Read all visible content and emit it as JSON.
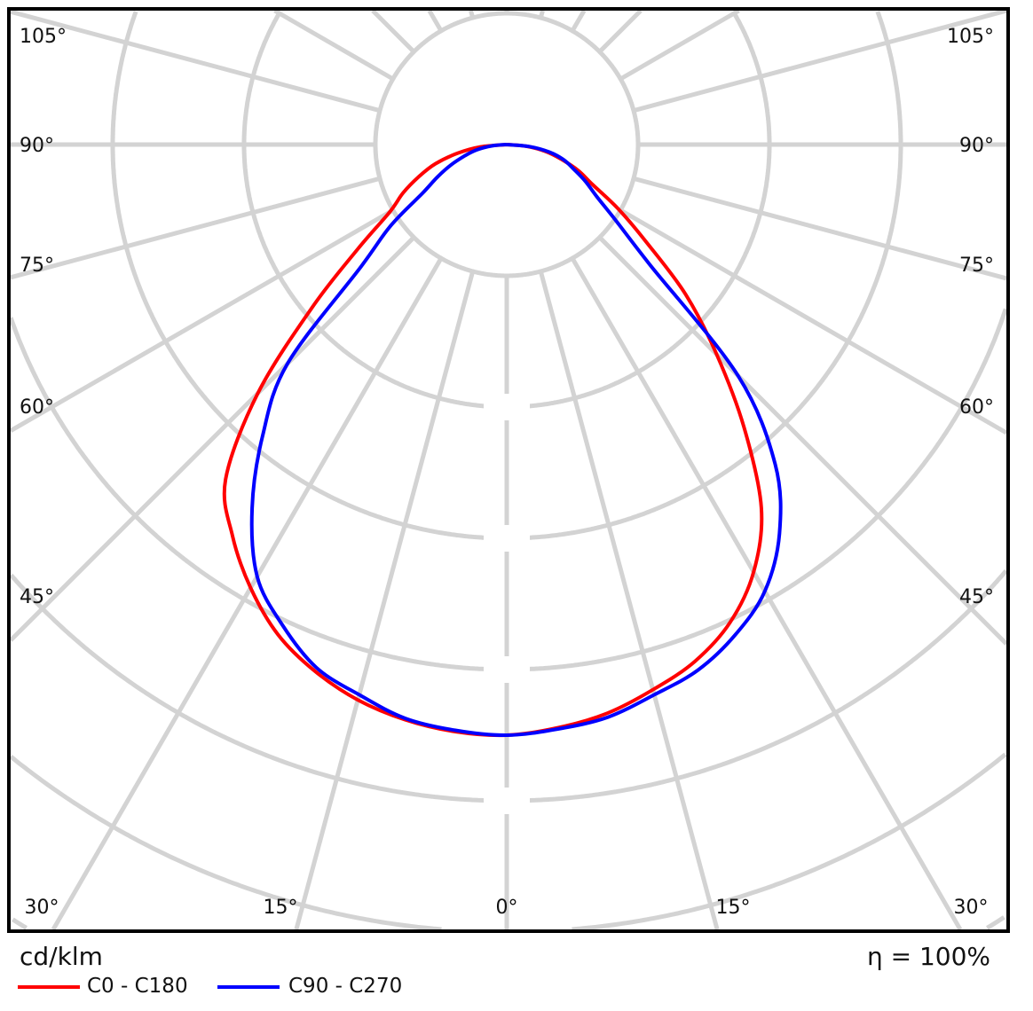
{
  "chart_data": {
    "type": "polar-line",
    "unit_label": "cd/klm",
    "efficiency_label": "η = 100%",
    "angle_tick_labels_left": [
      "105°",
      "90°",
      "75°",
      "60°",
      "45°"
    ],
    "angle_tick_labels_bottom": [
      "30°",
      "15°",
      "0°",
      "15°",
      "30°"
    ],
    "angle_tick_labels_right": [
      "105°",
      "90°",
      "75°",
      "60°",
      "45°"
    ],
    "radial_tick_labels": [],
    "grid": true,
    "gamma": [
      0,
      5,
      10,
      15,
      20,
      25,
      30,
      35,
      40,
      45,
      50,
      55,
      60,
      65,
      70,
      75,
      80,
      85,
      90
    ],
    "series": [
      {
        "name": "C0 - C180",
        "color": "#ff0000",
        "planes": {
          "C0": [
            4.5,
            4.46,
            4.4,
            4.3,
            4.19,
            4.02,
            3.76,
            3.38,
            2.81,
            2.26,
            1.78,
            1.3,
            0.98,
            0.72,
            0.58,
            0.43,
            0.3,
            0.15,
            0
          ],
          "C180": [
            4.5,
            4.49,
            4.45,
            4.38,
            4.27,
            4.12,
            3.9,
            3.64,
            3.33,
            2.68,
            1.94,
            1.38,
            1.03,
            0.87,
            0.71,
            0.56,
            0.38,
            0.2,
            0
          ]
        }
      },
      {
        "name": "C90 - C270",
        "color": "#0000ff",
        "planes": {
          "C90": [
            4.5,
            4.47,
            4.43,
            4.34,
            4.26,
            4.12,
            3.93,
            3.62,
            3.18,
            2.49,
            1.42,
            1.02,
            0.79,
            0.66,
            0.54,
            0.45,
            0.33,
            0.17,
            0
          ],
          "C270": [
            4.5,
            4.48,
            4.44,
            4.34,
            4.24,
            4.04,
            3.8,
            3.38,
            2.89,
            2.36,
            1.45,
            1.08,
            0.74,
            0.58,
            0.45,
            0.33,
            0.23,
            0.11,
            0
          ]
        }
      }
    ],
    "legend_position": "bottom-left"
  }
}
